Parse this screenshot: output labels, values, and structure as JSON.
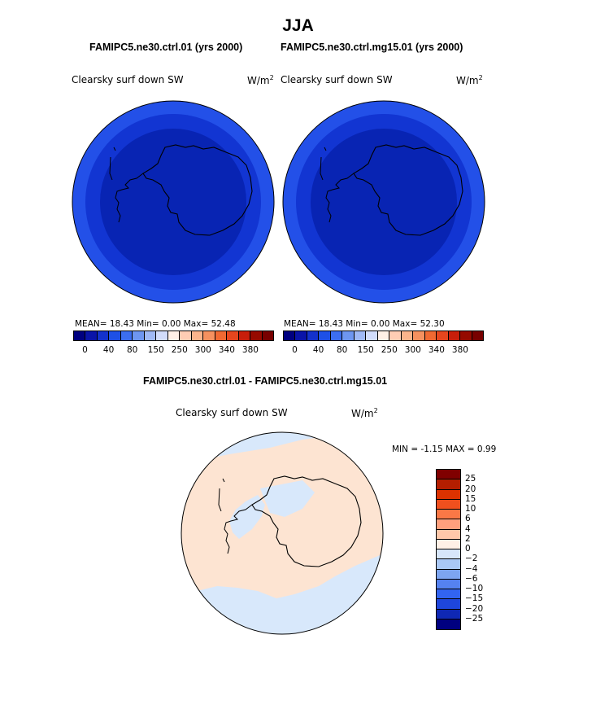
{
  "title": "JJA",
  "panels": [
    {
      "case": "FAMIPC5.ne30.ctrl.01 (yrs 2000)",
      "variable": "Clearsky surf down SW",
      "units": "W/m",
      "units_exp": "2",
      "stats": "MEAN=  18.43  Min=   0.00  Max=  52.48"
    },
    {
      "case": "FAMIPC5.ne30.ctrl.mg15.01 (yrs 2000)",
      "variable": "Clearsky surf down SW",
      "units": "W/m",
      "units_exp": "2",
      "stats": "MEAN=  18.43  Min=   0.00  Max=  52.30"
    }
  ],
  "diff": {
    "case": "FAMIPC5.ne30.ctrl.01 - FAMIPC5.ne30.ctrl.mg15.01",
    "variable": "Clearsky surf down SW",
    "units": "W/m",
    "units_exp": "2",
    "stats": "MIN =  -1.15 MAX =   0.99"
  },
  "colorbar_main": {
    "colors": [
      "#00007f",
      "#0a14a8",
      "#1432cc",
      "#1e50e6",
      "#3c6ef0",
      "#6e96f0",
      "#a0b9f5",
      "#d2dcfa",
      "#fff0e6",
      "#ffcdb4",
      "#fab48c",
      "#f5915f",
      "#f06932",
      "#e6461e",
      "#c81e0a",
      "#960a00",
      "#780000"
    ],
    "tick_labels": [
      "0",
      "40",
      "80",
      "150",
      "250",
      "300",
      "340",
      "380"
    ]
  },
  "colorbar_diff": {
    "colors": [
      "#800000",
      "#b41e00",
      "#dc3200",
      "#f0501e",
      "#fa7846",
      "#ffa07d",
      "#ffc8aa",
      "#fff0e6",
      "#d7e6fa",
      "#aac8f5",
      "#7da5f0",
      "#5582f0",
      "#3264f0",
      "#1e46dc",
      "#0f28b4",
      "#000080"
    ],
    "tick_labels": [
      "25",
      "20",
      "15",
      "10",
      "6",
      "4",
      "2",
      "0",
      "−2",
      "−4",
      "−6",
      "−10",
      "−15",
      "−20",
      "−25"
    ]
  },
  "map_colors": {
    "outer_ring": "#2350e8",
    "inner_ring": "#1235d2",
    "core": "#0824b3",
    "diff_positive": "#fde4d2",
    "diff_negative": "#d8e8fb"
  }
}
